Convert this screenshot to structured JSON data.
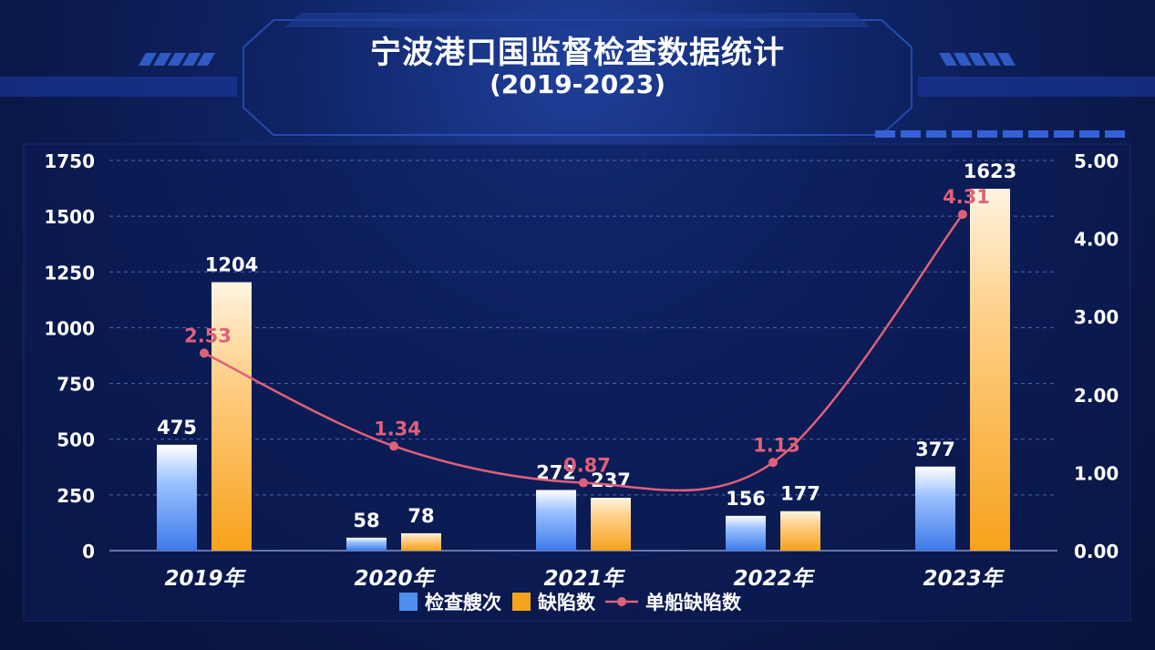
{
  "chart_data": {
    "type": "bar",
    "title": "宁波港口国监督检查数据统计",
    "subtitle": "(2019-2023)",
    "categories": [
      "2019年",
      "2020年",
      "2021年",
      "2022年",
      "2023年"
    ],
    "series": [
      {
        "name": "检查艘次",
        "type": "bar",
        "axis": "left",
        "values": [
          475,
          58,
          272,
          156,
          377
        ],
        "color": "#4f8ff0"
      },
      {
        "name": "缺陷数",
        "type": "bar",
        "axis": "left",
        "values": [
          1204,
          78,
          237,
          177,
          1623
        ],
        "color": "#f5a31a"
      },
      {
        "name": "单船缺陷数",
        "type": "line",
        "axis": "right",
        "values": [
          2.53,
          1.34,
          0.87,
          1.13,
          4.31
        ],
        "labels": [
          "2.53",
          "1.34",
          "0.87",
          "1.13",
          "4.31"
        ],
        "color": "#e0607a"
      }
    ],
    "y_left": {
      "min": 0,
      "max": 1750,
      "ticks": [
        "0",
        "250",
        "500",
        "750",
        "1000",
        "1250",
        "1500",
        "1750"
      ]
    },
    "y_right": {
      "min": 0,
      "max": 5,
      "ticks": [
        "0.00",
        "1.00",
        "2.00",
        "3.00",
        "4.00",
        "5.00"
      ]
    },
    "grid": true,
    "legend_position": "bottom"
  }
}
